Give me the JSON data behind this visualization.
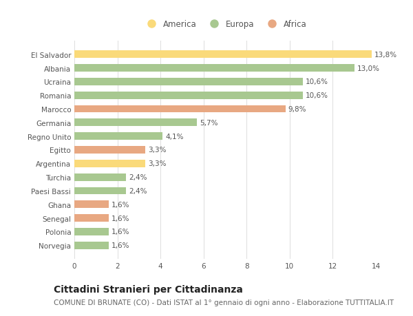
{
  "categories": [
    "El Salvador",
    "Albania",
    "Ucraina",
    "Romania",
    "Marocco",
    "Germania",
    "Regno Unito",
    "Egitto",
    "Argentina",
    "Turchia",
    "Paesi Bassi",
    "Ghana",
    "Senegal",
    "Polonia",
    "Norvegia"
  ],
  "values": [
    13.8,
    13.0,
    10.6,
    10.6,
    9.8,
    5.7,
    4.1,
    3.3,
    3.3,
    2.4,
    2.4,
    1.6,
    1.6,
    1.6,
    1.6
  ],
  "labels": [
    "13,8%",
    "13,0%",
    "10,6%",
    "10,6%",
    "9,8%",
    "5,7%",
    "4,1%",
    "3,3%",
    "3,3%",
    "2,4%",
    "2,4%",
    "1,6%",
    "1,6%",
    "1,6%",
    "1,6%"
  ],
  "continent": [
    "America",
    "Europa",
    "Europa",
    "Europa",
    "Africa",
    "Europa",
    "Europa",
    "Africa",
    "America",
    "Europa",
    "Europa",
    "Africa",
    "Africa",
    "Europa",
    "Europa"
  ],
  "colors": {
    "America": "#FADA7A",
    "Europa": "#A8C890",
    "Africa": "#E8A882"
  },
  "title": "Cittadini Stranieri per Cittadinanza",
  "subtitle": "COMUNE DI BRUNATE (CO) - Dati ISTAT al 1° gennaio di ogni anno - Elaborazione TUTTITALIA.IT",
  "xlim": [
    0,
    14
  ],
  "xticks": [
    0,
    2,
    4,
    6,
    8,
    10,
    12,
    14
  ],
  "background_color": "#ffffff",
  "grid_color": "#dddddd",
  "bar_height": 0.55,
  "title_fontsize": 10,
  "subtitle_fontsize": 7.5,
  "label_fontsize": 7.5,
  "tick_fontsize": 7.5,
  "legend_fontsize": 8.5
}
